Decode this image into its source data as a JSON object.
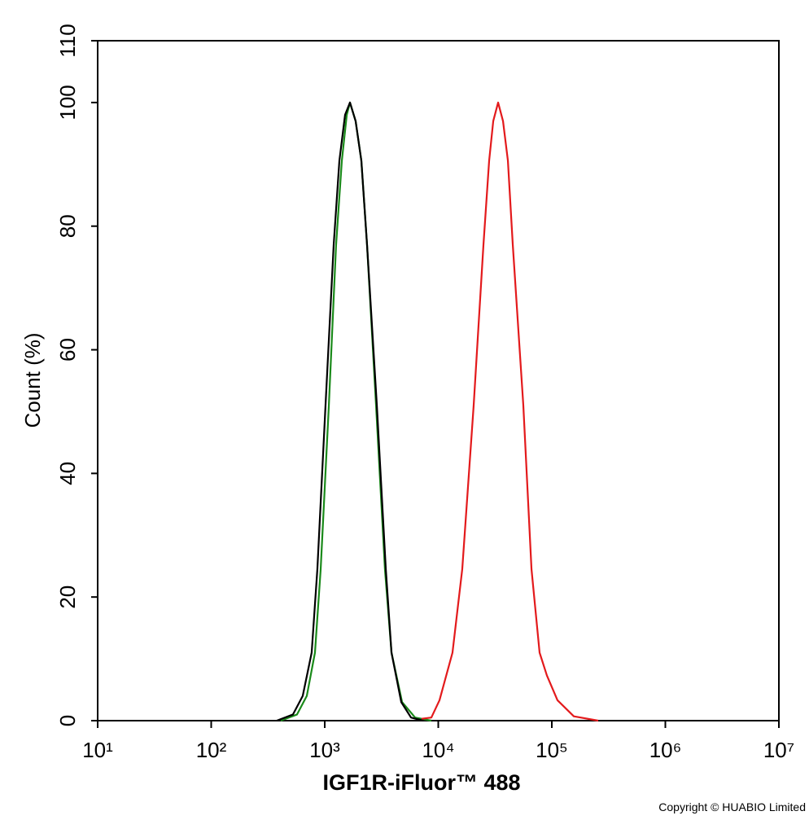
{
  "chart_data": {
    "type": "line",
    "xlabel": "IGF1R-iFluor™ 488",
    "ylabel": "Count  (%)",
    "footer": "Copyright © HUABIO Limited",
    "xscale": "log",
    "xlim": [
      10,
      10000000
    ],
    "xticks": [
      {
        "value": 10,
        "label": "10¹"
      },
      {
        "value": 100,
        "label": "10²"
      },
      {
        "value": 1000,
        "label": "10³"
      },
      {
        "value": 10000,
        "label": "10⁴"
      },
      {
        "value": 100000,
        "label": "10⁵"
      },
      {
        "value": 1000000,
        "label": "10⁶"
      },
      {
        "value": 10000000,
        "label": "10⁷"
      }
    ],
    "ylim": [
      0,
      110
    ],
    "yticks": [
      0,
      20,
      40,
      60,
      80,
      100,
      110
    ],
    "series": [
      {
        "color": "#1a8a1a",
        "x": [
          410,
          570,
          695,
          820,
          921,
          1087,
          1259,
          1415,
          1563,
          1668,
          1871,
          2101,
          2358,
          2831,
          3390,
          3873,
          4800,
          6252,
          8690
        ],
        "values": [
          0,
          1,
          4,
          11,
          24.5,
          51,
          77,
          90.6,
          98,
          100,
          97,
          90.6,
          77,
          51,
          24.5,
          11,
          3,
          0.5,
          0
        ]
      },
      {
        "color": "#000000",
        "x": [
          378,
          525,
          640,
          767,
          861,
          1016,
          1199,
          1346,
          1510,
          1668,
          1871,
          2101,
          2358,
          2877,
          3450,
          3873,
          4721,
          5754,
          7365
        ],
        "values": [
          0,
          1,
          4,
          11,
          24.5,
          51,
          77,
          90.6,
          98,
          100,
          97,
          90.6,
          77,
          51,
          24.5,
          11,
          3,
          0.5,
          0
        ]
      },
      {
        "color": "#e31a1c",
        "x": [
          7129,
          8690,
          10250,
          13340,
          16260,
          20500,
          25000,
          28060,
          30490,
          33660,
          37170,
          41040,
          45310,
          56110,
          66230,
          78050,
          90540,
          112200,
          156300,
          256500
        ],
        "values": [
          0.3,
          0.5,
          3.3,
          11,
          24.5,
          51,
          77,
          90.6,
          97,
          100,
          97,
          90.6,
          77,
          51,
          24.5,
          11,
          7.3,
          3.3,
          0.7,
          0
        ]
      }
    ]
  }
}
